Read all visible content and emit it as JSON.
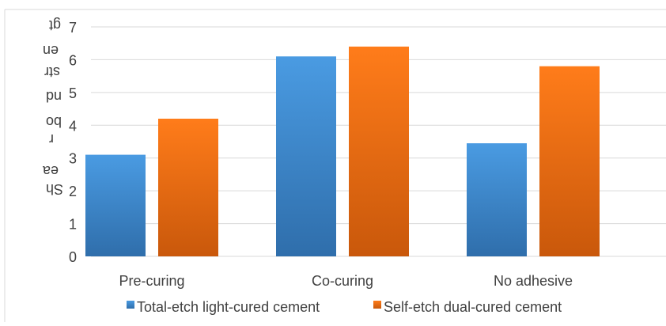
{
  "chart_data": {
    "type": "bar",
    "categories": [
      "Pre-curing",
      "Co-curing",
      "No adhesive"
    ],
    "series": [
      {
        "name": "Total-etch light-cured cement",
        "values": [
          3.1,
          6.1,
          3.45
        ]
      },
      {
        "name": "Self-etch dual-cured cement",
        "values": [
          4.2,
          6.4,
          5.8
        ]
      }
    ],
    "ylim": [
      0,
      7
    ],
    "yticks": [
      "0",
      "1",
      "2",
      "3",
      "4",
      "5",
      "6",
      "7"
    ],
    "ylabel_fragments": [
      "gt",
      "en",
      "str",
      "nd",
      "bo",
      "r",
      "ea",
      "Sh"
    ],
    "grid": true,
    "legend_position": "bottom",
    "colors": {
      "series1_top": "#4a9be2",
      "series1_bottom": "#2f6eab",
      "series2_top": "#ff7c1a",
      "series2_bottom": "#c9580b",
      "grid": "#d9d9d9",
      "text": "#404040"
    }
  }
}
